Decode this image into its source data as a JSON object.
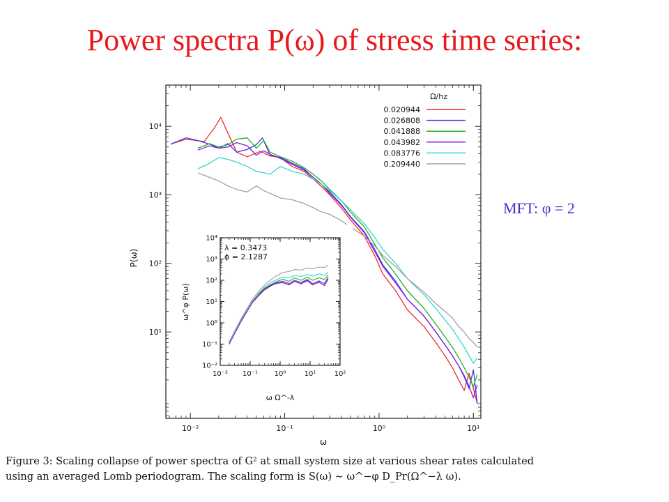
{
  "slide": {
    "title": "Power spectra P(ω) of stress time series:",
    "note": "MFT: φ = 2"
  },
  "caption": {
    "line1": "Figure 3: Scaling collapse of power spectra of G² at small system size at various shear rates calculated",
    "line2": "using an averaged Lomb periodogram. The scaling form is S(ω) ∼ ω^−φ D_Pr(Ω^−λ ω)."
  },
  "chart_data": {
    "type": "line",
    "main": {
      "xlabel": "ω",
      "ylabel": "P(ω)",
      "xscale": "log",
      "yscale": "log",
      "xlim": [
        0.0055,
        12
      ],
      "ylim": [
        0.55,
        40000
      ],
      "xticks": [
        0.01,
        0.1,
        1,
        10
      ],
      "xtick_labels": [
        "10⁻²",
        "10⁻¹",
        "10⁰",
        "10¹"
      ],
      "yticks": [
        10,
        100,
        1000,
        10000
      ],
      "ytick_labels": [
        "10¹",
        "10²",
        "10³",
        "10⁴"
      ],
      "legend_title": "Ω/hz",
      "legend_position": "top-right",
      "series": [
        {
          "name": "0.020944",
          "color": "#ee2a2a",
          "x": [
            0.0062,
            0.009,
            0.014,
            0.018,
            0.021,
            0.025,
            0.031,
            0.04,
            0.055,
            0.07,
            0.09,
            0.12,
            0.16,
            0.2,
            0.25,
            0.3,
            0.4,
            0.5,
            0.7,
            0.9,
            1.1,
            1.5,
            2,
            3,
            4,
            5,
            6,
            7,
            8,
            9,
            10,
            11
          ],
          "y": [
            5500,
            6500,
            6000,
            9500,
            13500,
            8000,
            4200,
            3600,
            4300,
            3700,
            3500,
            2600,
            2200,
            1700,
            1300,
            1000,
            640,
            430,
            250,
            130,
            70,
            40,
            21,
            12,
            7,
            4.5,
            3,
            2,
            1.4,
            2.5,
            1.5,
            0.9
          ]
        },
        {
          "name": "0.026808",
          "color": "#3a3aee",
          "x": [
            0.0062,
            0.009,
            0.012,
            0.016,
            0.02,
            0.025,
            0.031,
            0.04,
            0.05,
            0.058,
            0.07,
            0.09,
            0.12,
            0.16,
            0.2,
            0.25,
            0.3,
            0.4,
            0.5,
            0.7,
            0.9,
            1.1,
            1.5,
            2,
            3,
            4,
            5,
            6,
            7,
            8,
            9,
            10,
            11
          ],
          "y": [
            5500,
            6800,
            6200,
            5500,
            4800,
            5600,
            4200,
            4600,
            5400,
            6800,
            3800,
            3500,
            2900,
            2400,
            1800,
            1400,
            1100,
            720,
            480,
            290,
            160,
            95,
            55,
            30,
            17,
            10,
            6.5,
            4.5,
            3.2,
            2.2,
            1.5,
            2.8,
            0.9
          ]
        },
        {
          "name": "0.041888",
          "color": "#22b022",
          "x": [
            0.012,
            0.016,
            0.02,
            0.025,
            0.031,
            0.04,
            0.05,
            0.06,
            0.07,
            0.09,
            0.12,
            0.16,
            0.2,
            0.25,
            0.3,
            0.4,
            0.5,
            0.7,
            0.9,
            1.1,
            1.5,
            2,
            3,
            4,
            5,
            6,
            7,
            8,
            9,
            10,
            11
          ],
          "y": [
            4800,
            5600,
            5000,
            5400,
            6500,
            6800,
            4800,
            6200,
            4200,
            3600,
            3100,
            2500,
            2000,
            1550,
            1200,
            820,
            560,
            340,
            190,
            120,
            70,
            40,
            22,
            13,
            8.5,
            6,
            4.2,
            3,
            2.2,
            1.6,
            2.4
          ]
        },
        {
          "name": "0.043982",
          "color": "#8a1ad8",
          "x": [
            0.012,
            0.016,
            0.02,
            0.025,
            0.031,
            0.04,
            0.05,
            0.06,
            0.07,
            0.09,
            0.12,
            0.16,
            0.2,
            0.25,
            0.3,
            0.4,
            0.5,
            0.7,
            0.9,
            1.1,
            1.5,
            2,
            3,
            4,
            5,
            6,
            7,
            8,
            9,
            10,
            11
          ],
          "y": [
            4500,
            5200,
            4800,
            5000,
            5800,
            5200,
            3800,
            4400,
            3900,
            3400,
            2800,
            2300,
            1800,
            1400,
            1050,
            700,
            470,
            280,
            150,
            90,
            52,
            30,
            17,
            10,
            6.5,
            4.5,
            3.2,
            2.3,
            1.6,
            1.1,
            1.7
          ]
        },
        {
          "name": "0.083776",
          "color": "#33d6cc",
          "x": [
            0.012,
            0.016,
            0.02,
            0.025,
            0.031,
            0.04,
            0.05,
            0.06,
            0.07,
            0.09,
            0.12,
            0.16,
            0.2,
            0.25,
            0.3,
            0.4,
            0.5,
            0.7,
            0.9,
            1.1,
            1.5,
            2,
            3,
            4,
            5,
            6,
            7,
            8,
            9,
            10,
            11
          ],
          "y": [
            2400,
            2900,
            3500,
            3300,
            3000,
            2600,
            2200,
            2100,
            2000,
            2600,
            2200,
            2000,
            1700,
            1400,
            1150,
            820,
            600,
            380,
            240,
            160,
            100,
            60,
            35,
            22,
            15,
            11,
            8,
            6,
            4.5,
            3.5,
            4.2
          ]
        },
        {
          "name": "0.209440",
          "color": "#a0a0a0",
          "x": [
            0.012,
            0.016,
            0.02,
            0.025,
            0.031,
            0.04,
            0.05,
            0.06,
            0.07,
            0.09,
            0.12,
            0.16,
            0.2,
            0.25,
            0.3,
            0.4,
            0.5,
            0.7,
            0.9,
            1.1,
            1.5,
            2,
            3,
            4,
            5,
            6,
            7,
            8,
            9,
            10,
            11
          ],
          "y": [
            2100,
            1800,
            1600,
            1350,
            1200,
            1100,
            1350,
            1150,
            1050,
            900,
            850,
            750,
            650,
            560,
            520,
            420,
            340,
            250,
            180,
            130,
            90,
            60,
            38,
            26,
            20,
            16,
            12,
            10,
            8,
            7,
            6
          ]
        }
      ]
    },
    "inset": {
      "xlabel": "ω Ω^-λ",
      "ylabel": "ω^φ P(ω)",
      "xscale": "log",
      "yscale": "log",
      "xlim": [
        0.01,
        100
      ],
      "ylim": [
        0.01,
        10000
      ],
      "xticks": [
        0.01,
        0.1,
        1,
        10,
        100
      ],
      "xtick_labels": [
        "10⁻²",
        "10⁻¹",
        "10⁰",
        "10¹",
        "10²"
      ],
      "yticks": [
        0.01,
        0.1,
        1,
        10,
        100,
        1000,
        10000
      ],
      "ytick_labels": [
        "10⁻²",
        "10⁻¹",
        "10⁰",
        "10¹",
        "10²",
        "10³",
        "10⁴"
      ],
      "annotations": [
        "λ = 0.3473",
        "ϕ = 2.1287"
      ],
      "series": [
        {
          "name": "0.020944",
          "color": "#ee2a2a",
          "x": [
            0.02,
            0.03,
            0.05,
            0.08,
            0.12,
            0.2,
            0.3,
            0.5,
            0.8,
            1.2,
            2,
            3,
            5,
            8,
            12,
            20,
            30,
            40
          ],
          "y": [
            0.1,
            0.3,
            1.2,
            3.5,
            9,
            20,
            35,
            55,
            75,
            80,
            60,
            90,
            70,
            100,
            60,
            85,
            55,
            120
          ]
        },
        {
          "name": "0.026808",
          "color": "#3a3aee",
          "x": [
            0.02,
            0.03,
            0.05,
            0.08,
            0.12,
            0.2,
            0.3,
            0.5,
            0.8,
            1.2,
            2,
            3,
            5,
            8,
            12,
            20,
            30,
            40
          ],
          "y": [
            0.12,
            0.35,
            1.4,
            4,
            10,
            22,
            40,
            60,
            80,
            90,
            70,
            100,
            80,
            110,
            70,
            95,
            70,
            140
          ]
        },
        {
          "name": "0.041888",
          "color": "#22b022",
          "x": [
            0.02,
            0.03,
            0.05,
            0.08,
            0.12,
            0.2,
            0.3,
            0.5,
            0.8,
            1.2,
            2,
            3,
            5,
            8,
            12,
            20,
            30,
            40
          ],
          "y": [
            0.11,
            0.32,
            1.3,
            3.8,
            10,
            24,
            42,
            65,
            90,
            110,
            90,
            130,
            100,
            140,
            100,
            130,
            110,
            180
          ]
        },
        {
          "name": "0.043982",
          "color": "#8a1ad8",
          "x": [
            0.02,
            0.03,
            0.05,
            0.08,
            0.12,
            0.2,
            0.3,
            0.5,
            0.8,
            1.2,
            2,
            3,
            5,
            8,
            12,
            20,
            30,
            40
          ],
          "y": [
            0.1,
            0.3,
            1.2,
            3.6,
            9.5,
            21,
            37,
            58,
            72,
            78,
            62,
            88,
            68,
            95,
            62,
            80,
            58,
            110
          ]
        },
        {
          "name": "0.083776",
          "color": "#33d6cc",
          "x": [
            0.02,
            0.03,
            0.05,
            0.08,
            0.12,
            0.2,
            0.3,
            0.5,
            0.8,
            1.2,
            2,
            3,
            5,
            8,
            12,
            20,
            30,
            40
          ],
          "y": [
            0.12,
            0.36,
            1.5,
            4.2,
            11,
            26,
            48,
            80,
            110,
            140,
            130,
            170,
            150,
            190,
            160,
            200,
            170,
            240
          ]
        },
        {
          "name": "0.209440",
          "color": "#a0a0a0",
          "x": [
            0.02,
            0.03,
            0.05,
            0.08,
            0.12,
            0.2,
            0.3,
            0.5,
            0.8,
            1.2,
            2,
            3,
            5,
            8,
            12,
            20,
            30,
            40
          ],
          "y": [
            0.13,
            0.4,
            1.6,
            4.8,
            13,
            32,
            60,
            110,
            170,
            230,
            260,
            320,
            300,
            380,
            350,
            420,
            400,
            520
          ]
        }
      ]
    }
  }
}
